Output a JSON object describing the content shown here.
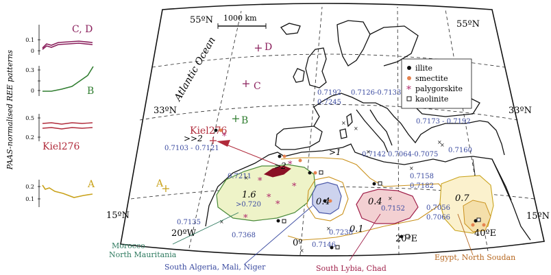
{
  "side_panel": {
    "axis_title": "PAAS-normalised REE patterns",
    "panels": [
      {
        "label": "C, D",
        "ticks": [
          "0.1",
          "0"
        ],
        "color": "#8a1f5c"
      },
      {
        "label": "B",
        "ticks": [
          "0.3",
          "0"
        ],
        "color": "#2f7d2f"
      },
      {
        "label": "Kiel276",
        "ticks": [
          "0.5",
          "0.2"
        ],
        "color": "#b02a3a"
      },
      {
        "label": "A",
        "ticks": [
          "0.2",
          "0.1"
        ],
        "color": "#c9a21a"
      }
    ]
  },
  "map": {
    "lat_labels": [
      "55ºN",
      "55ºN",
      "33ºN",
      "33ºN",
      "15ºN",
      "15ºN"
    ],
    "lon_labels": [
      "20ºW",
      "0º",
      "20ºE",
      "40ºE"
    ],
    "scale_bar": "1000 km",
    "ocean_label": "Atlantic Ocean",
    "sample_points": [
      {
        "label": "D",
        "color": "#8a1f5c"
      },
      {
        "label": "C",
        "color": "#8a1f5c"
      },
      {
        "label": "B",
        "color": "#2f7d2f"
      },
      {
        "label": "A",
        "color": "#c9a21a"
      },
      {
        "label": "Kiel276",
        "color": "#b02a3a"
      }
    ],
    "isotope_values": {
      "kiel_range": "0.7103 - 0.7121",
      "v7192": "0.7192",
      "v7245": "0.7245",
      "v7126": "0.7126-0.7133",
      "v7173": "0.7173 - 0.7192",
      "v7142": "0.7142",
      "v7064": "0.7064-0.7075",
      "v7160": "0.7160",
      "v7211": "0.7211",
      "v7158": "0.7158",
      "v7182": "0.7182",
      "v0720": ">0.720",
      "v7152": "0.7152",
      "v7056": "0.7056",
      "v7066": "0.7066",
      "v7135": "0.7135",
      "v7368": "0.7368",
      "v7238": "0.7238",
      "v7146": "0.7146"
    },
    "flux_labels": {
      "f2a": ">>2",
      "f2b": ">2",
      "f1": ">1",
      "f16": "1.6",
      "f04a": "0.4",
      "f04b": "0.4",
      "f07": "0.7",
      "f01": "0.1"
    },
    "legend": [
      {
        "label": "illite",
        "marker": "dot"
      },
      {
        "label": "smectite",
        "marker": "orange-dot"
      },
      {
        "label": "palygorskite",
        "marker": "asterisk"
      },
      {
        "label": "kaolinite",
        "marker": "square"
      }
    ],
    "regions": [
      {
        "label_1": "Morocco",
        "label_2": "North Mauritania",
        "color": "#2e7a5f"
      },
      {
        "label_1": "South Algeria, Mali, Niger",
        "color": "#3a4aa0"
      },
      {
        "label_1": "South Lybia, Chad",
        "color": "#a0204a"
      },
      {
        "label_1": "Egypt, North Soudan",
        "color": "#b5651d"
      }
    ]
  }
}
